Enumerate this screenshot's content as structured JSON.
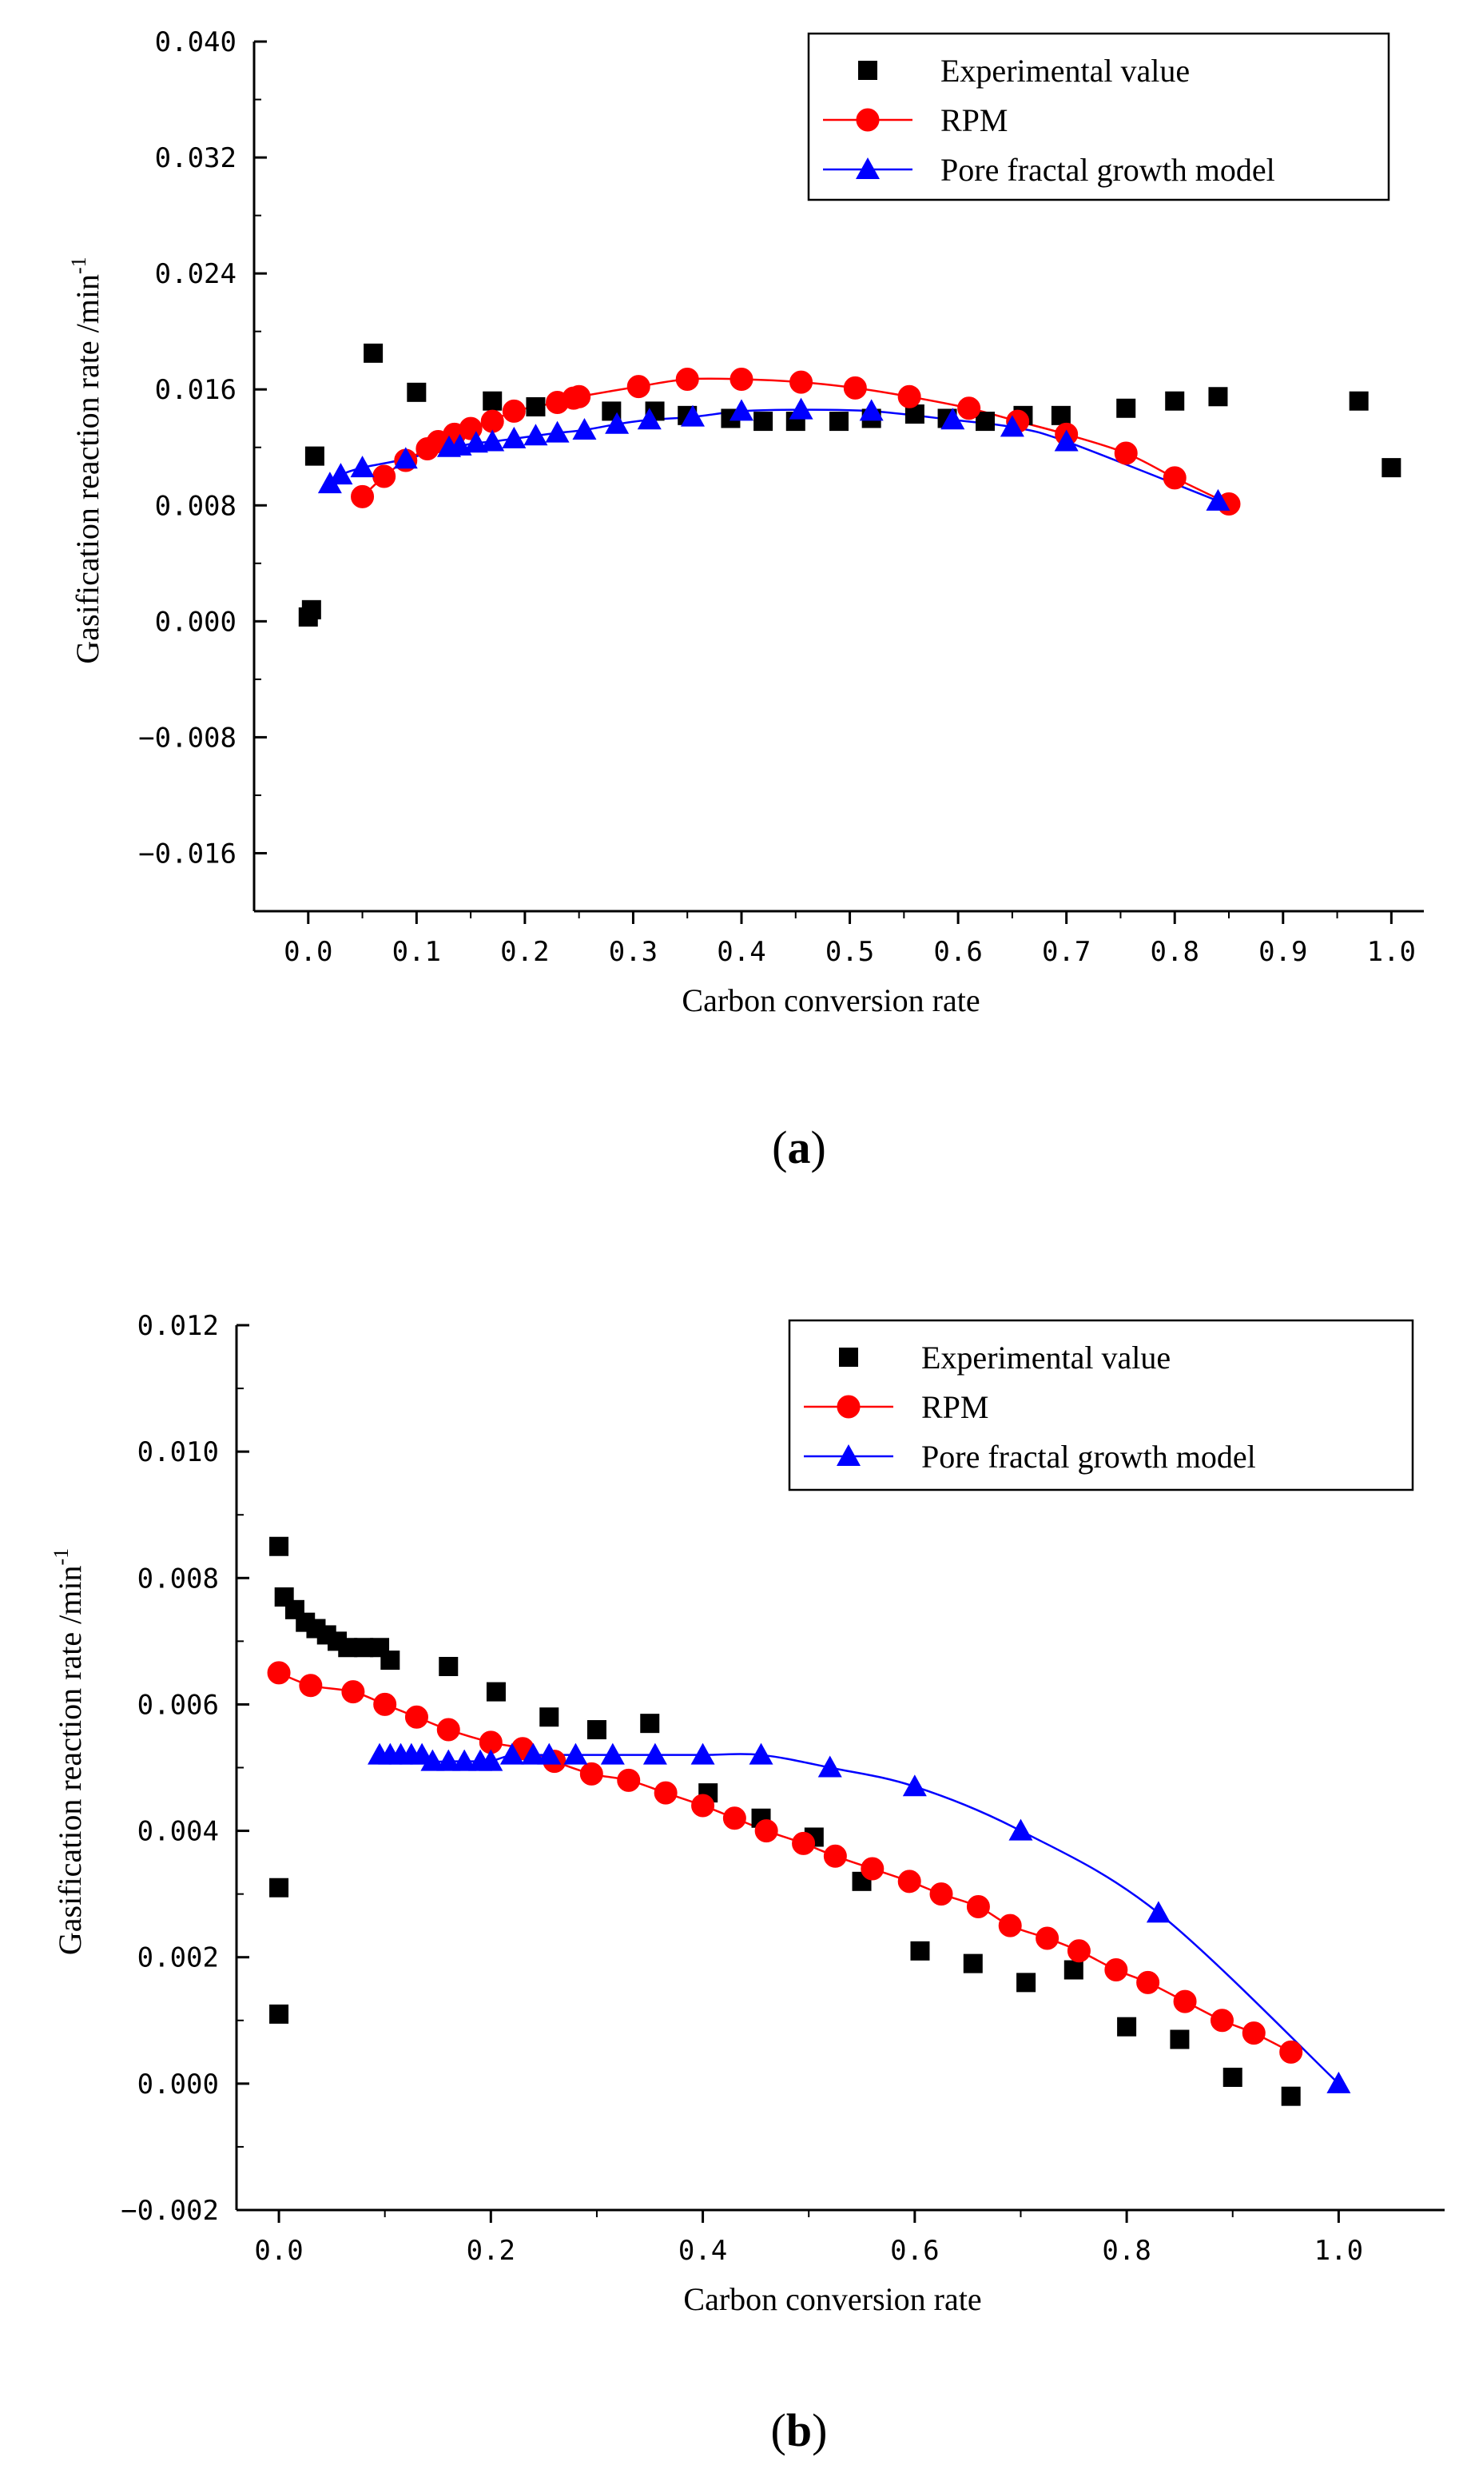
{
  "chart_data": [
    {
      "type": "scatter",
      "panel_label": "(a)",
      "panel_letter": "a",
      "xlabel": "Carbon conversion rate",
      "ylabel": "Gasification reaction rate /min",
      "ylabel_sup": "-1",
      "xlim": [
        -0.05,
        1.03
      ],
      "ylim": [
        -0.02,
        0.04
      ],
      "xticks": [
        0.0,
        0.1,
        0.2,
        0.3,
        0.4,
        0.5,
        0.6,
        0.7,
        0.8,
        0.9,
        1.0
      ],
      "xtick_labels": [
        "0.0",
        "0.1",
        "0.2",
        "0.3",
        "0.4",
        "0.5",
        "0.6",
        "0.7",
        "0.8",
        "0.9",
        "1.0"
      ],
      "yticks": [
        -0.016,
        -0.008,
        0.0,
        0.008,
        0.016,
        0.024,
        0.032,
        0.04
      ],
      "ytick_labels": [
        "−0.016",
        "−0.008",
        "0.000",
        "0.008",
        "0.016",
        "0.024",
        "0.032",
        "0.040"
      ],
      "legend_position": "top-right",
      "series": [
        {
          "name": "Experimental value",
          "marker": "square",
          "color": "#000000",
          "line": false,
          "x": [
            0.0,
            0.003,
            0.006,
            0.06,
            0.1,
            0.17,
            0.21,
            0.28,
            0.32,
            0.35,
            0.39,
            0.42,
            0.45,
            0.49,
            0.52,
            0.56,
            0.59,
            0.625,
            0.66,
            0.695,
            0.755,
            0.8,
            0.84,
            0.97,
            1.0
          ],
          "y": [
            0.0003,
            0.0008,
            0.0114,
            0.0185,
            0.0158,
            0.0152,
            0.0148,
            0.0145,
            0.0145,
            0.0142,
            0.014,
            0.0138,
            0.0138,
            0.0138,
            0.014,
            0.0143,
            0.014,
            0.0138,
            0.0142,
            0.0142,
            0.0147,
            0.0152,
            0.0155,
            0.0152,
            0.0106
          ]
        },
        {
          "name": "RPM",
          "marker": "circle",
          "color": "#ff0000",
          "line": true,
          "x": [
            0.05,
            0.07,
            0.09,
            0.11,
            0.12,
            0.135,
            0.15,
            0.17,
            0.19,
            0.23,
            0.245,
            0.25,
            0.305,
            0.35,
            0.4,
            0.455,
            0.505,
            0.555,
            0.61,
            0.655,
            0.7,
            0.755,
            0.8,
            0.85
          ],
          "y": [
            0.0086,
            0.01,
            0.0111,
            0.0119,
            0.0124,
            0.0129,
            0.0133,
            0.0138,
            0.0145,
            0.0151,
            0.0154,
            0.0155,
            0.0162,
            0.0167,
            0.0167,
            0.0165,
            0.0161,
            0.0155,
            0.0147,
            0.0138,
            0.0129,
            0.0116,
            0.0099,
            0.0081
          ]
        },
        {
          "name": "Pore fractal growth model",
          "marker": "triangle",
          "color": "#0000ff",
          "line": true,
          "x": [
            0.02,
            0.03,
            0.05,
            0.09,
            0.13,
            0.14,
            0.155,
            0.17,
            0.19,
            0.21,
            0.23,
            0.255,
            0.285,
            0.315,
            0.355,
            0.4,
            0.455,
            0.52,
            0.595,
            0.65,
            0.7,
            0.84
          ],
          "y": [
            0.0095,
            0.0101,
            0.0106,
            0.0112,
            0.012,
            0.0121,
            0.0123,
            0.0124,
            0.0126,
            0.0128,
            0.013,
            0.0132,
            0.0136,
            0.0139,
            0.0141,
            0.0145,
            0.0146,
            0.0145,
            0.0139,
            0.0134,
            0.0124,
            0.0083
          ]
        }
      ]
    },
    {
      "type": "scatter",
      "panel_label": "(b)",
      "panel_letter": "b",
      "xlabel": "Carbon conversion rate",
      "ylabel": "Gasification reaction rate /min",
      "ylabel_sup": "-1",
      "xlim": [
        -0.04,
        1.1
      ],
      "ylim": [
        -0.002,
        0.012
      ],
      "xticks": [
        0.0,
        0.2,
        0.4,
        0.6,
        0.8,
        1.0
      ],
      "xtick_labels": [
        "0.0",
        "0.2",
        "0.4",
        "0.6",
        "0.8",
        "1.0"
      ],
      "yticks": [
        -0.002,
        0.0,
        0.002,
        0.004,
        0.006,
        0.008,
        0.01,
        0.012
      ],
      "ytick_labels": [
        "−0.002",
        "0.000",
        "0.002",
        "0.004",
        "0.006",
        "0.008",
        "0.010",
        "0.012"
      ],
      "legend_position": "top-right",
      "series": [
        {
          "name": "Experimental value",
          "marker": "square",
          "color": "#000000",
          "line": false,
          "x": [
            0.0,
            0.0,
            0.0,
            0.005,
            0.015,
            0.025,
            0.035,
            0.045,
            0.055,
            0.065,
            0.08,
            0.095,
            0.105,
            0.16,
            0.205,
            0.255,
            0.3,
            0.35,
            0.405,
            0.455,
            0.505,
            0.55,
            0.605,
            0.655,
            0.705,
            0.75,
            0.8,
            0.85,
            0.9,
            0.955
          ],
          "y": [
            0.0011,
            0.0031,
            0.0085,
            0.0077,
            0.0075,
            0.0073,
            0.0072,
            0.0071,
            0.007,
            0.0069,
            0.0069,
            0.0069,
            0.0067,
            0.0066,
            0.0062,
            0.0058,
            0.0056,
            0.0057,
            0.0046,
            0.0042,
            0.0039,
            0.0032,
            0.0021,
            0.0019,
            0.0016,
            0.0018,
            0.0009,
            0.0007,
            0.0001,
            -0.0002
          ]
        },
        {
          "name": "RPM",
          "marker": "circle",
          "color": "#ff0000",
          "line": true,
          "x": [
            0.0,
            0.03,
            0.07,
            0.1,
            0.13,
            0.16,
            0.2,
            0.23,
            0.26,
            0.295,
            0.33,
            0.365,
            0.4,
            0.43,
            0.46,
            0.495,
            0.525,
            0.56,
            0.595,
            0.625,
            0.66,
            0.69,
            0.725,
            0.755,
            0.79,
            0.82,
            0.855,
            0.89,
            0.92,
            0.955
          ],
          "y": [
            0.0065,
            0.0063,
            0.0062,
            0.006,
            0.0058,
            0.0056,
            0.0054,
            0.0053,
            0.0051,
            0.0049,
            0.0048,
            0.0046,
            0.0044,
            0.0042,
            0.004,
            0.0038,
            0.0036,
            0.0034,
            0.0032,
            0.003,
            0.0028,
            0.0025,
            0.0023,
            0.0021,
            0.0018,
            0.0016,
            0.0013,
            0.001,
            0.0008,
            0.0005
          ]
        },
        {
          "name": "Pore fractal growth model",
          "marker": "triangle",
          "color": "#0000ff",
          "line": true,
          "x": [
            0.095,
            0.105,
            0.115,
            0.125,
            0.135,
            0.145,
            0.16,
            0.175,
            0.19,
            0.2,
            0.22,
            0.24,
            0.255,
            0.28,
            0.315,
            0.355,
            0.4,
            0.455,
            0.52,
            0.6,
            0.7,
            0.83,
            1.0
          ],
          "y": [
            0.0052,
            0.0052,
            0.0052,
            0.0052,
            0.0052,
            0.0051,
            0.0051,
            0.0051,
            0.0051,
            0.0051,
            0.0052,
            0.0052,
            0.0052,
            0.0052,
            0.0052,
            0.0052,
            0.0052,
            0.0052,
            0.005,
            0.0047,
            0.004,
            0.0027,
            0.0
          ]
        }
      ]
    }
  ]
}
